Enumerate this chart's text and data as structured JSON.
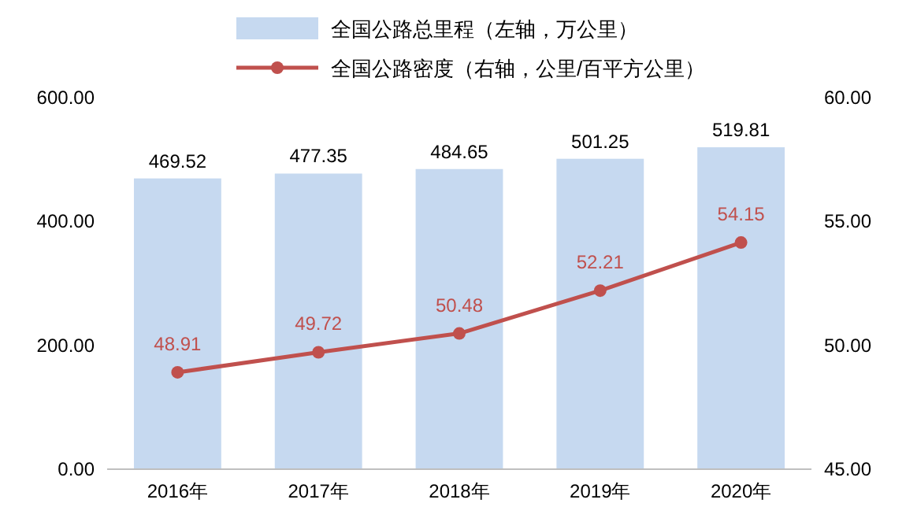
{
  "chart_data": {
    "type": "bar",
    "categories": [
      "2016年",
      "2017年",
      "2018年",
      "2019年",
      "2020年"
    ],
    "series": [
      {
        "name": "全国公路总里程（左轴，万公里）",
        "color": "#c6d9f0",
        "values": [
          469.52,
          477.35,
          484.65,
          501.25,
          519.81
        ]
      },
      {
        "name": "全国公路密度（右轴，公里/百平方公里）",
        "type": "line",
        "axis": "y2",
        "color": "#c0504d",
        "marker": "circle",
        "values": [
          48.91,
          49.72,
          50.48,
          52.21,
          54.15
        ]
      }
    ],
    "ylim": [
      0,
      600
    ],
    "yticks": [
      {
        "value": 0,
        "label": "0.00"
      },
      {
        "value": 200,
        "label": "200.00"
      },
      {
        "value": 400,
        "label": "400.00"
      },
      {
        "value": 600,
        "label": "600.00"
      }
    ],
    "y2lim": [
      45,
      60
    ],
    "y2ticks": [
      {
        "value": 45,
        "label": "45.00"
      },
      {
        "value": 50,
        "label": "50.00"
      },
      {
        "value": 55,
        "label": "55.00"
      },
      {
        "value": 60,
        "label": "60.00"
      }
    ],
    "data_labels": true,
    "legend": "top",
    "grid": false
  }
}
